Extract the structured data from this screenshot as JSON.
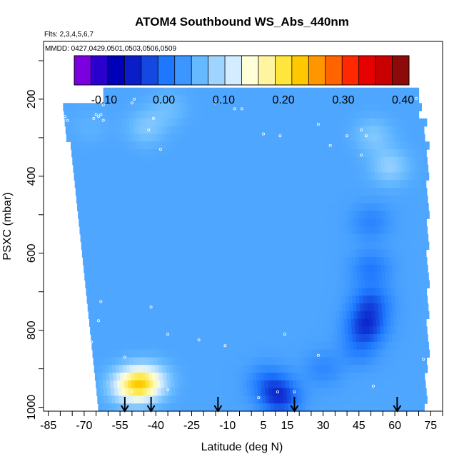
{
  "chart_data": {
    "type": "heatmap",
    "title": "ATOM4 Southbound WS_Abs_440nm",
    "notes": {
      "flights": "Flts: 2,3,4,5,6,7",
      "dates": "MMDD: 0427,0429,0501,0503,0506,0509"
    },
    "xlabel": "Latitude (deg N)",
    "ylabel": "PSXC (mbar)",
    "xlim": [
      -87,
      80
    ],
    "ylim": [
      1010,
      50
    ],
    "x_ticks": [
      "-85",
      "-70",
      "-55",
      "-40",
      "-25",
      "-10",
      "5",
      "15",
      "30",
      "45",
      "60",
      "75"
    ],
    "x_tick_values": [
      -85,
      -70,
      -55,
      -40,
      -25,
      -10,
      5,
      15,
      30,
      45,
      60,
      75
    ],
    "y_ticks": [
      "200",
      "400",
      "600",
      "800",
      "1000"
    ],
    "y_tick_values": [
      200,
      400,
      600,
      800,
      1000
    ],
    "colorbar": {
      "ticks": [
        "-0.10",
        "0.00",
        "0.10",
        "0.20",
        "0.30",
        "0.40"
      ],
      "tick_values": [
        -0.1,
        0.0,
        0.1,
        0.2,
        0.3,
        0.4
      ],
      "range": [
        -0.15,
        0.41
      ],
      "colors": [
        "#7b00e0",
        "#2b00cf",
        "#0000b8",
        "#0a1ec8",
        "#1448e0",
        "#1e78ff",
        "#3c96ff",
        "#64b9ff",
        "#9ed4ff",
        "#d4ecff",
        "#ffffd8",
        "#fff5a0",
        "#ffe63c",
        "#ffc800",
        "#ff9600",
        "#ff6400",
        "#ff2800",
        "#e60000",
        "#c80000",
        "#8c0a0a"
      ]
    },
    "field": {
      "background": 0.04,
      "data_lat_range": [
        -78,
        72
      ],
      "data_pres_range": [
        170,
        1000
      ],
      "features": [
        {
          "lat": -46,
          "pres": 940,
          "value": 0.16
        },
        {
          "lat": -52,
          "pres": 945,
          "value": 0.12
        },
        {
          "lat": -41,
          "pres": 930,
          "value": 0.08
        },
        {
          "lat": -44,
          "pres": 275,
          "value": 0.07
        },
        {
          "lat": -68,
          "pres": 272,
          "value": 0.05
        },
        {
          "lat": 12,
          "pres": 975,
          "value": -0.04
        },
        {
          "lat": 7,
          "pres": 935,
          "value": 0.0
        },
        {
          "lat": 48,
          "pres": 790,
          "value": -0.04
        },
        {
          "lat": 50,
          "pres": 730,
          "value": -0.02
        },
        {
          "lat": 50,
          "pres": 640,
          "value": 0.0
        },
        {
          "lat": 50,
          "pres": 520,
          "value": 0.01
        },
        {
          "lat": 58,
          "pres": 375,
          "value": 0.08
        },
        {
          "lat": 51,
          "pres": 295,
          "value": 0.07
        },
        {
          "lat": 45,
          "pres": 850,
          "value": 0.01
        },
        {
          "lat": 30,
          "pres": 900,
          "value": 0.015
        },
        {
          "lat": -35,
          "pres": 225,
          "value": 0.06
        }
      ]
    },
    "sample_points": [
      {
        "lat": -62,
        "pres": 215
      },
      {
        "lat": -50,
        "pres": 210
      },
      {
        "lat": -49,
        "pres": 200
      },
      {
        "lat": -63,
        "pres": 240
      },
      {
        "lat": -64,
        "pres": 245
      },
      {
        "lat": -66,
        "pres": 250
      },
      {
        "lat": -62,
        "pres": 255
      },
      {
        "lat": -65,
        "pres": 240
      },
      {
        "lat": -78,
        "pres": 245
      },
      {
        "lat": -77,
        "pres": 255
      },
      {
        "lat": -41,
        "pres": 250
      },
      {
        "lat": -43,
        "pres": 280
      },
      {
        "lat": -38,
        "pres": 330
      },
      {
        "lat": -7,
        "pres": 225
      },
      {
        "lat": -15,
        "pres": 210
      },
      {
        "lat": -4,
        "pres": 225
      },
      {
        "lat": 5,
        "pres": 290
      },
      {
        "lat": 12,
        "pres": 295
      },
      {
        "lat": 33,
        "pres": 320
      },
      {
        "lat": 28,
        "pres": 265
      },
      {
        "lat": 40,
        "pres": 295
      },
      {
        "lat": 46,
        "pres": 280
      },
      {
        "lat": 48,
        "pres": 295
      },
      {
        "lat": 46,
        "pres": 345
      },
      {
        "lat": 69,
        "pres": 198
      },
      {
        "lat": -63,
        "pres": 725
      },
      {
        "lat": -42,
        "pres": 740
      },
      {
        "lat": -64,
        "pres": 775
      },
      {
        "lat": -67,
        "pres": 830
      },
      {
        "lat": -35,
        "pres": 810
      },
      {
        "lat": -22,
        "pres": 825
      },
      {
        "lat": -11,
        "pres": 840
      },
      {
        "lat": 14,
        "pres": 810
      },
      {
        "lat": 28,
        "pres": 865
      },
      {
        "lat": -68,
        "pres": 940
      },
      {
        "lat": -69,
        "pres": 950
      },
      {
        "lat": -50,
        "pres": 960
      },
      {
        "lat": -35,
        "pres": 955
      },
      {
        "lat": 3,
        "pres": 975
      },
      {
        "lat": 11,
        "pres": 960
      },
      {
        "lat": 18,
        "pres": 960
      },
      {
        "lat": 51,
        "pres": 945
      },
      {
        "lat": 72,
        "pres": 875
      },
      {
        "lat": -53,
        "pres": 870
      }
    ],
    "flight_arrows_lat": [
      -53,
      -42,
      -14,
      18,
      61
    ]
  }
}
